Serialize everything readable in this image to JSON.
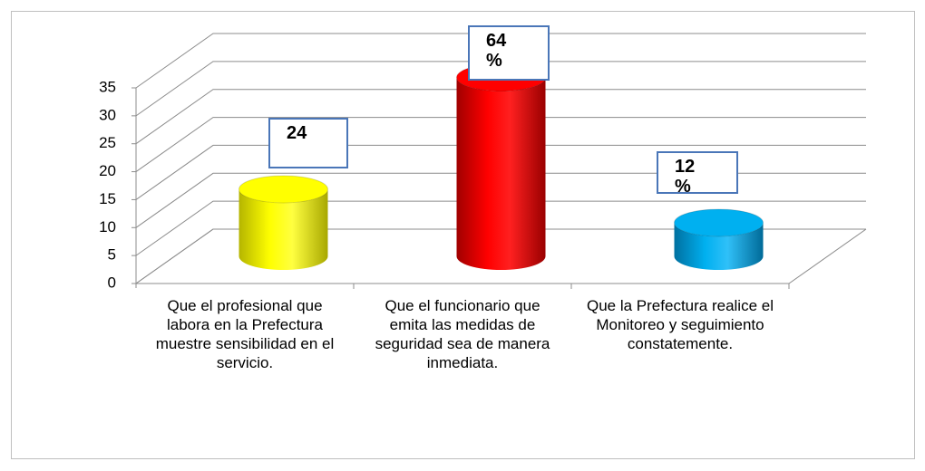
{
  "chart_data": {
    "type": "bar3d",
    "categories": [
      "Que el profesional que labora en la Prefectura muestre sensibilidad en el servicio.",
      "Que el funcionario que emita las medidas de seguridad sea de manera inmediata.",
      "Que la Prefectura realice el Monitoreo y seguimiento constatemente."
    ],
    "values": [
      12,
      32,
      6
    ],
    "colors": [
      "#ffff00",
      "#ff0000",
      "#00b0f0"
    ],
    "annotations": [
      "24",
      "64\n%",
      "12\n%"
    ],
    "ylim": [
      0,
      35
    ],
    "yticks": [
      0,
      5,
      10,
      15,
      20,
      25,
      30,
      35
    ],
    "grid": true
  }
}
